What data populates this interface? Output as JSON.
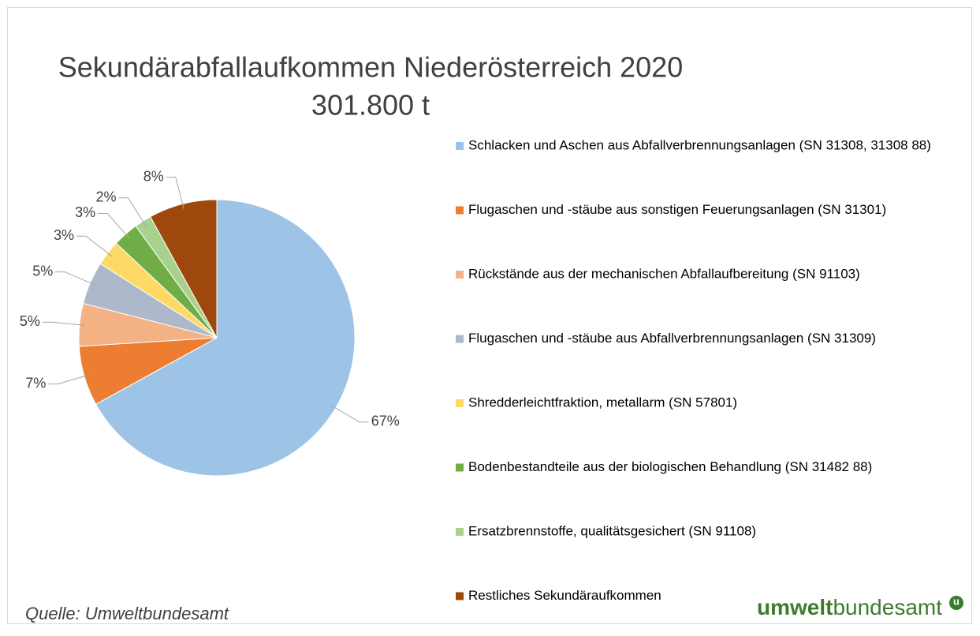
{
  "chart_data": {
    "type": "pie",
    "title": "Sekundärabfallaufkommen  Niederösterreich 2020",
    "subtitle": "301.800 t",
    "categories": [
      "Schlacken und Aschen aus Abfallverbrennungsanlagen (SN 31308, 31308 88)",
      "Flugaschen und -stäube aus sonstigen Feuerungsanlagen (SN 31301)",
      "Rückstände aus der mechanischen Abfallaufbereitung (SN 91103)",
      "Flugaschen und -stäube aus Abfallverbrennungsanlagen (SN 31309)",
      "Shredderleichtfraktion, metallarm (SN 57801)",
      "Bodenbestandteile aus der biologischen Behandlung (SN 31482 88)",
      "Ersatzbrennstoffe, qualitätsgesichert (SN 91108)",
      "Restliches Sekundäraufkommen"
    ],
    "values": [
      67,
      7,
      5,
      5,
      3,
      3,
      2,
      8
    ],
    "value_labels": [
      "67%",
      "7%",
      "5%",
      "5%",
      "3%",
      "3%",
      "2%",
      "8%"
    ],
    "colors": [
      "#9dc3e6",
      "#ed7d31",
      "#f4b183",
      "#adb9ca",
      "#ffd966",
      "#70ad47",
      "#a9d18e",
      "#9e480e"
    ],
    "legend": "right",
    "source": "Quelle: Umweltbundesamt",
    "logo": {
      "bold": "umwelt",
      "regular": "bundesamt",
      "badge": "u"
    }
  }
}
